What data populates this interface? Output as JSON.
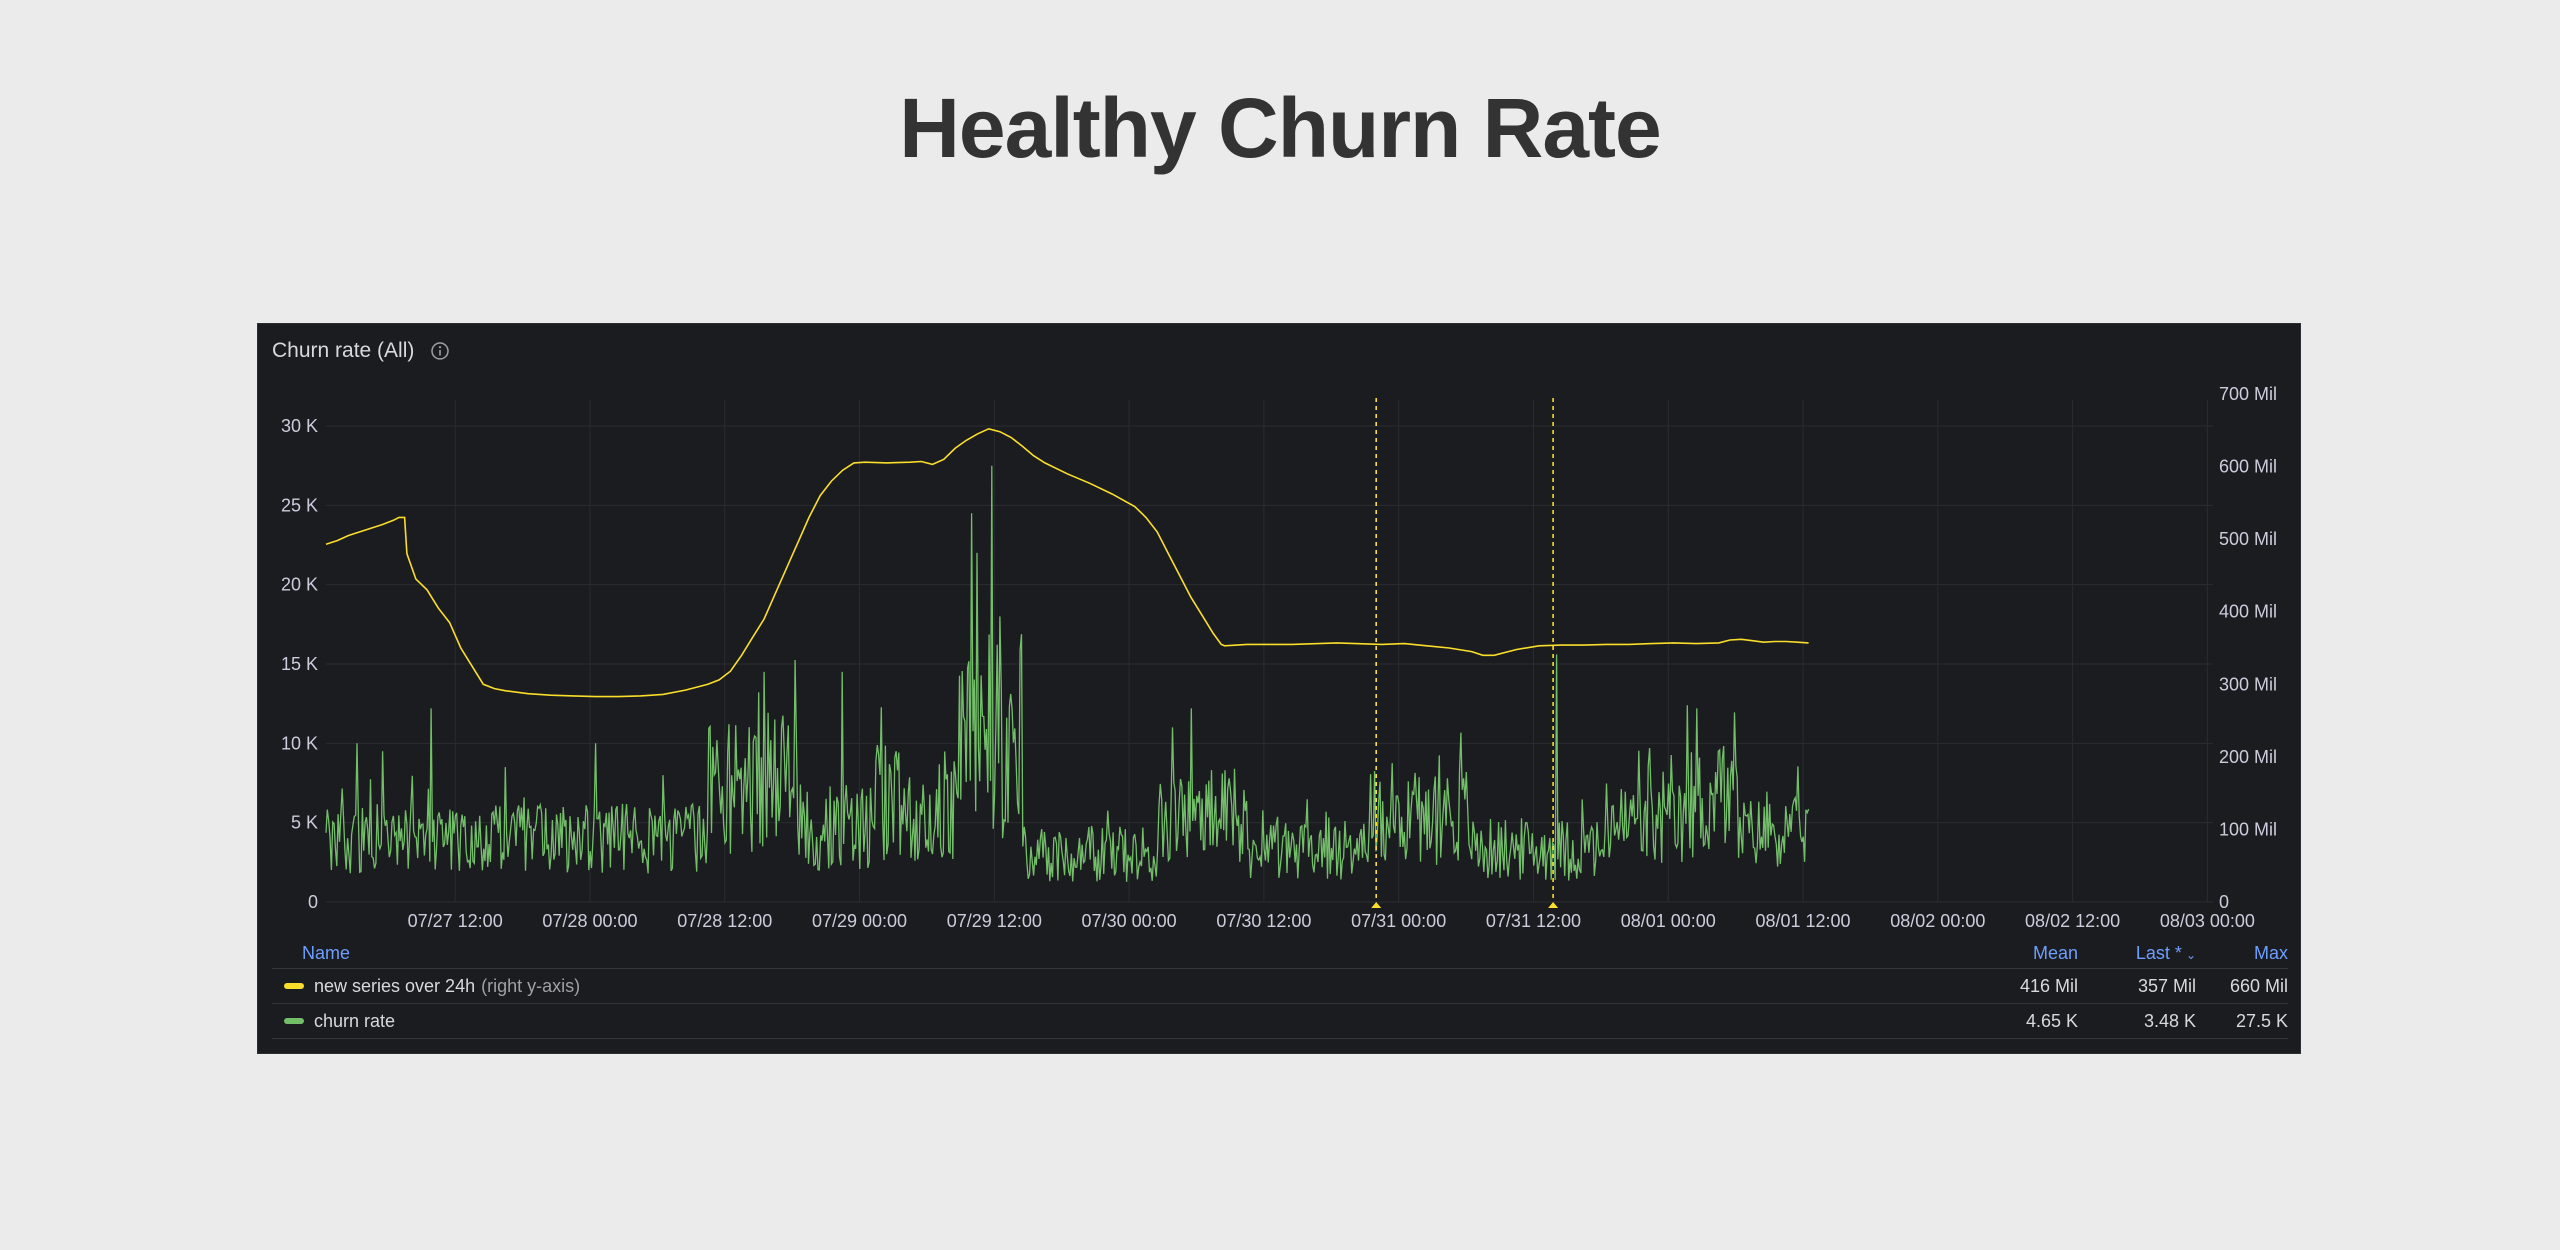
{
  "page": {
    "title": "Healthy Churn Rate"
  },
  "panel": {
    "title": "Churn rate (All)",
    "info_icon": "info-circle-icon"
  },
  "legend": {
    "headers": {
      "name": "Name",
      "mean": "Mean",
      "last": "Last *",
      "max": "Max"
    },
    "rows": [
      {
        "name": "new series over 24h",
        "suffix": "(right y-axis)",
        "color": "#fade2a",
        "mean": "416 Mil",
        "last": "357 Mil",
        "max": "660 Mil"
      },
      {
        "name": "churn rate",
        "suffix": "",
        "color": "#73bf69",
        "mean": "4.65 K",
        "last": "3.48 K",
        "max": "27.5 K"
      }
    ]
  },
  "chart_data": {
    "type": "line",
    "x_ticks": [
      "07/27 12:00",
      "07/28 00:00",
      "07/28 12:00",
      "07/29 00:00",
      "07/29 12:00",
      "07/30 00:00",
      "07/30 12:00",
      "07/31 00:00",
      "07/31 12:00",
      "08/01 00:00",
      "08/01 12:00",
      "08/02 00:00",
      "08/02 12:00",
      "08/03 00:00"
    ],
    "x_range": [
      "07/27 00:30",
      "08/03 00:30"
    ],
    "y_left": {
      "ticks": [
        "0",
        "5 K",
        "10 K",
        "15 K",
        "20 K",
        "25 K",
        "30 K"
      ],
      "range": [
        0,
        30000
      ]
    },
    "y_right": {
      "ticks": [
        "0",
        "100 Mil",
        "200 Mil",
        "300 Mil",
        "400 Mil",
        "500 Mil",
        "600 Mil",
        "700 Mil"
      ],
      "range": [
        0,
        700000000
      ]
    },
    "annotations": [
      {
        "time": "07/30 22:00",
        "color": "#fade2a"
      },
      {
        "time": "07/31 13:45",
        "color": "#fade2a"
      }
    ],
    "series": [
      {
        "name": "new series over 24h",
        "axis": "right",
        "color": "#fade2a",
        "points": [
          [
            0,
            493
          ],
          [
            1,
            498
          ],
          [
            2,
            505
          ],
          [
            3,
            510
          ],
          [
            4,
            515
          ],
          [
            5,
            520
          ],
          [
            6,
            526
          ],
          [
            6.5,
            530
          ],
          [
            7,
            530
          ],
          [
            7.2,
            480
          ],
          [
            8,
            445
          ],
          [
            9,
            430
          ],
          [
            10,
            405
          ],
          [
            11,
            385
          ],
          [
            12,
            350
          ],
          [
            13,
            325
          ],
          [
            14,
            300
          ],
          [
            15,
            294
          ],
          [
            16,
            291
          ],
          [
            18,
            287
          ],
          [
            20,
            285
          ],
          [
            22,
            284
          ],
          [
            24,
            283
          ],
          [
            26,
            283
          ],
          [
            28,
            284
          ],
          [
            30,
            286
          ],
          [
            32,
            292
          ],
          [
            34,
            300
          ],
          [
            35,
            306
          ],
          [
            36,
            318
          ],
          [
            37,
            340
          ],
          [
            38,
            365
          ],
          [
            39,
            390
          ],
          [
            40,
            425
          ],
          [
            41,
            460
          ],
          [
            42,
            495
          ],
          [
            43,
            530
          ],
          [
            44,
            560
          ],
          [
            45,
            580
          ],
          [
            46,
            595
          ],
          [
            47,
            605
          ],
          [
            48,
            606
          ],
          [
            50,
            605
          ],
          [
            52,
            606
          ],
          [
            53,
            607
          ],
          [
            54,
            603
          ],
          [
            55,
            610
          ],
          [
            56,
            625
          ],
          [
            57,
            636
          ],
          [
            58,
            645
          ],
          [
            59,
            652
          ],
          [
            60,
            648
          ],
          [
            61,
            640
          ],
          [
            62,
            628
          ],
          [
            63,
            615
          ],
          [
            64,
            605
          ],
          [
            66,
            590
          ],
          [
            68,
            577
          ],
          [
            70,
            562
          ],
          [
            72,
            545
          ],
          [
            73,
            530
          ],
          [
            74,
            510
          ],
          [
            75,
            480
          ],
          [
            76,
            450
          ],
          [
            77,
            420
          ],
          [
            78,
            395
          ],
          [
            79,
            370
          ],
          [
            79.7,
            355
          ],
          [
            80,
            353
          ],
          [
            82,
            355
          ],
          [
            86,
            355
          ],
          [
            90,
            357
          ],
          [
            94,
            355
          ],
          [
            96,
            356
          ],
          [
            98,
            353
          ],
          [
            100,
            350
          ],
          [
            102,
            345
          ],
          [
            103,
            340
          ],
          [
            104,
            340
          ],
          [
            106,
            348
          ],
          [
            108,
            353
          ],
          [
            110,
            354
          ],
          [
            112,
            354
          ],
          [
            114,
            355
          ],
          [
            116,
            355
          ],
          [
            118,
            356
          ],
          [
            120,
            357
          ],
          [
            122,
            356
          ],
          [
            124,
            357
          ],
          [
            125,
            361
          ],
          [
            126,
            362
          ],
          [
            127,
            360
          ],
          [
            128,
            358
          ],
          [
            129,
            359
          ],
          [
            130,
            359
          ],
          [
            131,
            358
          ],
          [
            132,
            357
          ]
        ]
      },
      {
        "name": "churn rate",
        "axis": "left",
        "color": "#73bf69",
        "segments": [
          {
            "from": 0,
            "to": 34,
            "base": 4000,
            "amp": 2200
          },
          {
            "from": 34,
            "to": 42,
            "base": 7500,
            "amp": 4500
          },
          {
            "from": 42,
            "to": 49,
            "base": 4800,
            "amp": 2800
          },
          {
            "from": 49,
            "to": 56,
            "base": 6000,
            "amp": 3500
          },
          {
            "from": 56,
            "to": 62,
            "base": 10500,
            "amp": 6500
          },
          {
            "from": 62,
            "to": 74,
            "base": 3000,
            "amp": 1800
          },
          {
            "from": 74,
            "to": 82,
            "base": 5500,
            "amp": 3000
          },
          {
            "from": 82,
            "to": 93,
            "base": 3400,
            "amp": 2000
          },
          {
            "from": 93,
            "to": 102,
            "base": 5500,
            "amp": 3200
          },
          {
            "from": 102,
            "to": 114,
            "base": 3300,
            "amp": 2000
          },
          {
            "from": 114,
            "to": 121,
            "base": 4800,
            "amp": 2800
          },
          {
            "from": 121,
            "to": 126,
            "base": 6200,
            "amp": 3600
          },
          {
            "from": 126,
            "to": 132,
            "base": 4400,
            "amp": 2200
          }
        ],
        "spikes": [
          [
            2.8,
            10000
          ],
          [
            5,
            9500
          ],
          [
            9.4,
            12200
          ],
          [
            16,
            8500
          ],
          [
            24,
            10000
          ],
          [
            30,
            8000
          ],
          [
            39,
            14500
          ],
          [
            40,
            11500
          ],
          [
            46,
            14500
          ],
          [
            59.3,
            27500
          ],
          [
            58,
            22000
          ],
          [
            57.5,
            24500
          ],
          [
            60,
            18000
          ],
          [
            62,
            3500
          ],
          [
            77,
            12200
          ],
          [
            109.5,
            15600
          ],
          [
            122,
            12200
          ],
          [
            124,
            9500
          ]
        ]
      }
    ]
  }
}
